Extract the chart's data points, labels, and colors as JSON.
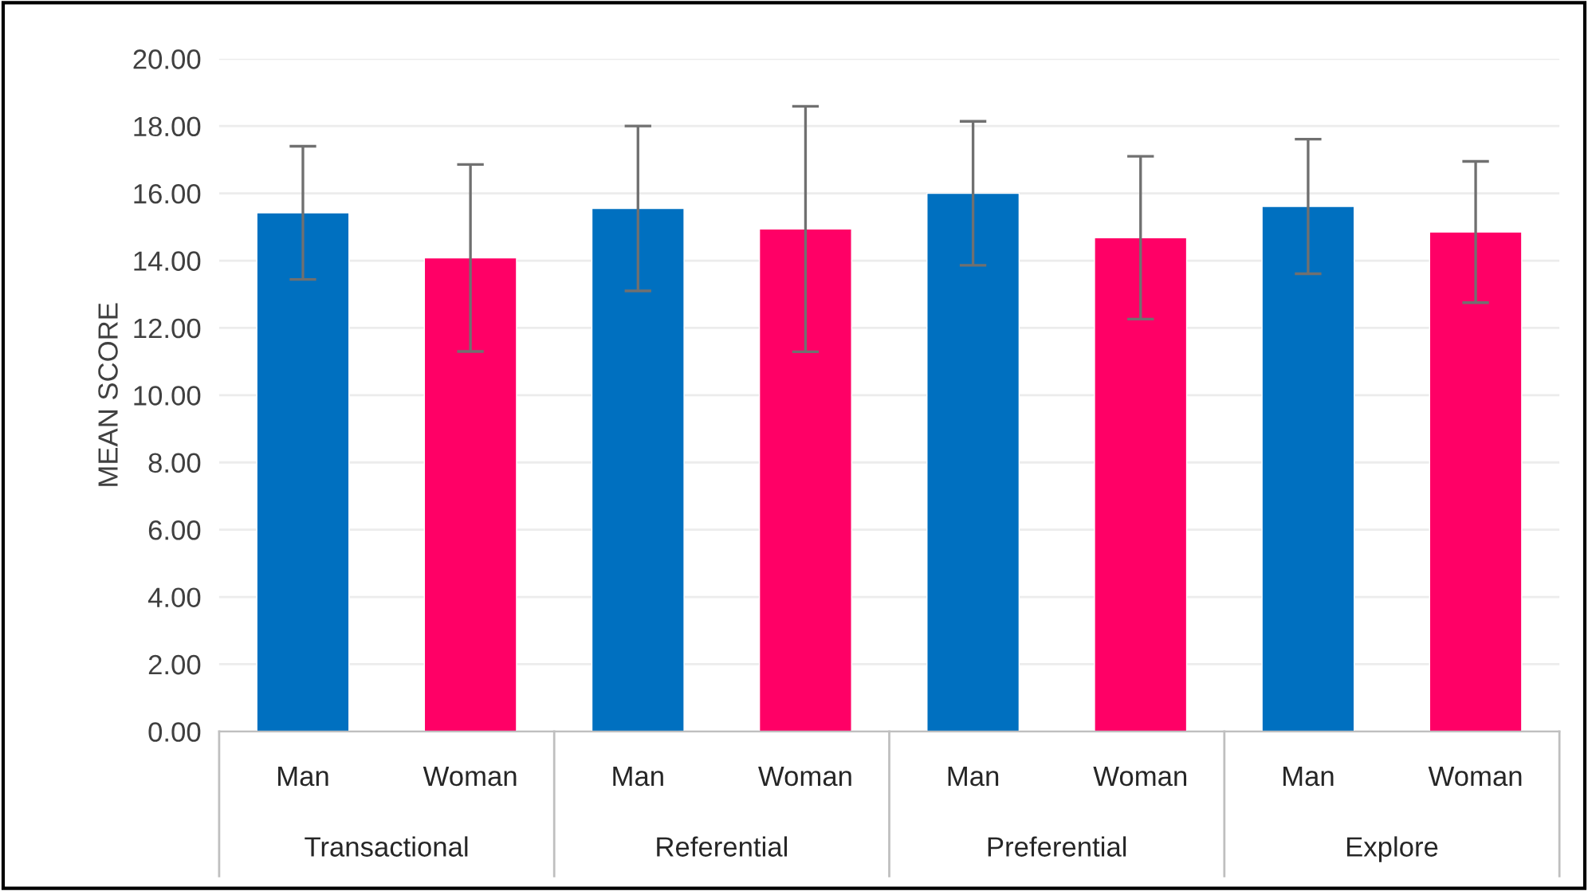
{
  "chart_data": {
    "type": "bar",
    "ylabel": "MEAN SCORE",
    "categories": [
      "Transactional",
      "Referential",
      "Preferential",
      "Explore"
    ],
    "series": [
      {
        "name": "Man",
        "color": "#0070c0",
        "values": [
          15.42,
          15.55,
          16.0,
          15.61
        ],
        "errors": [
          1.98,
          2.45,
          2.14,
          2.0
        ]
      },
      {
        "name": "Woman",
        "color": "#ff0066",
        "values": [
          14.08,
          14.94,
          14.68,
          14.85
        ],
        "errors": [
          2.78,
          3.65,
          2.42,
          2.1
        ]
      }
    ],
    "ylim": [
      0,
      20
    ],
    "yticks": [
      {
        "value": 0,
        "label": "0.00"
      },
      {
        "value": 2,
        "label": "2.00"
      },
      {
        "value": 4,
        "label": "4.00"
      },
      {
        "value": 6,
        "label": "6.00"
      },
      {
        "value": 8,
        "label": "8.00"
      },
      {
        "value": 10,
        "label": "10.00"
      },
      {
        "value": 12,
        "label": "12.00"
      },
      {
        "value": 14,
        "label": "14.00"
      },
      {
        "value": 16,
        "label": "16.00"
      },
      {
        "value": 18,
        "label": "18.00"
      },
      {
        "value": 20,
        "label": "20.00"
      }
    ],
    "grid": "y",
    "legend": false
  }
}
